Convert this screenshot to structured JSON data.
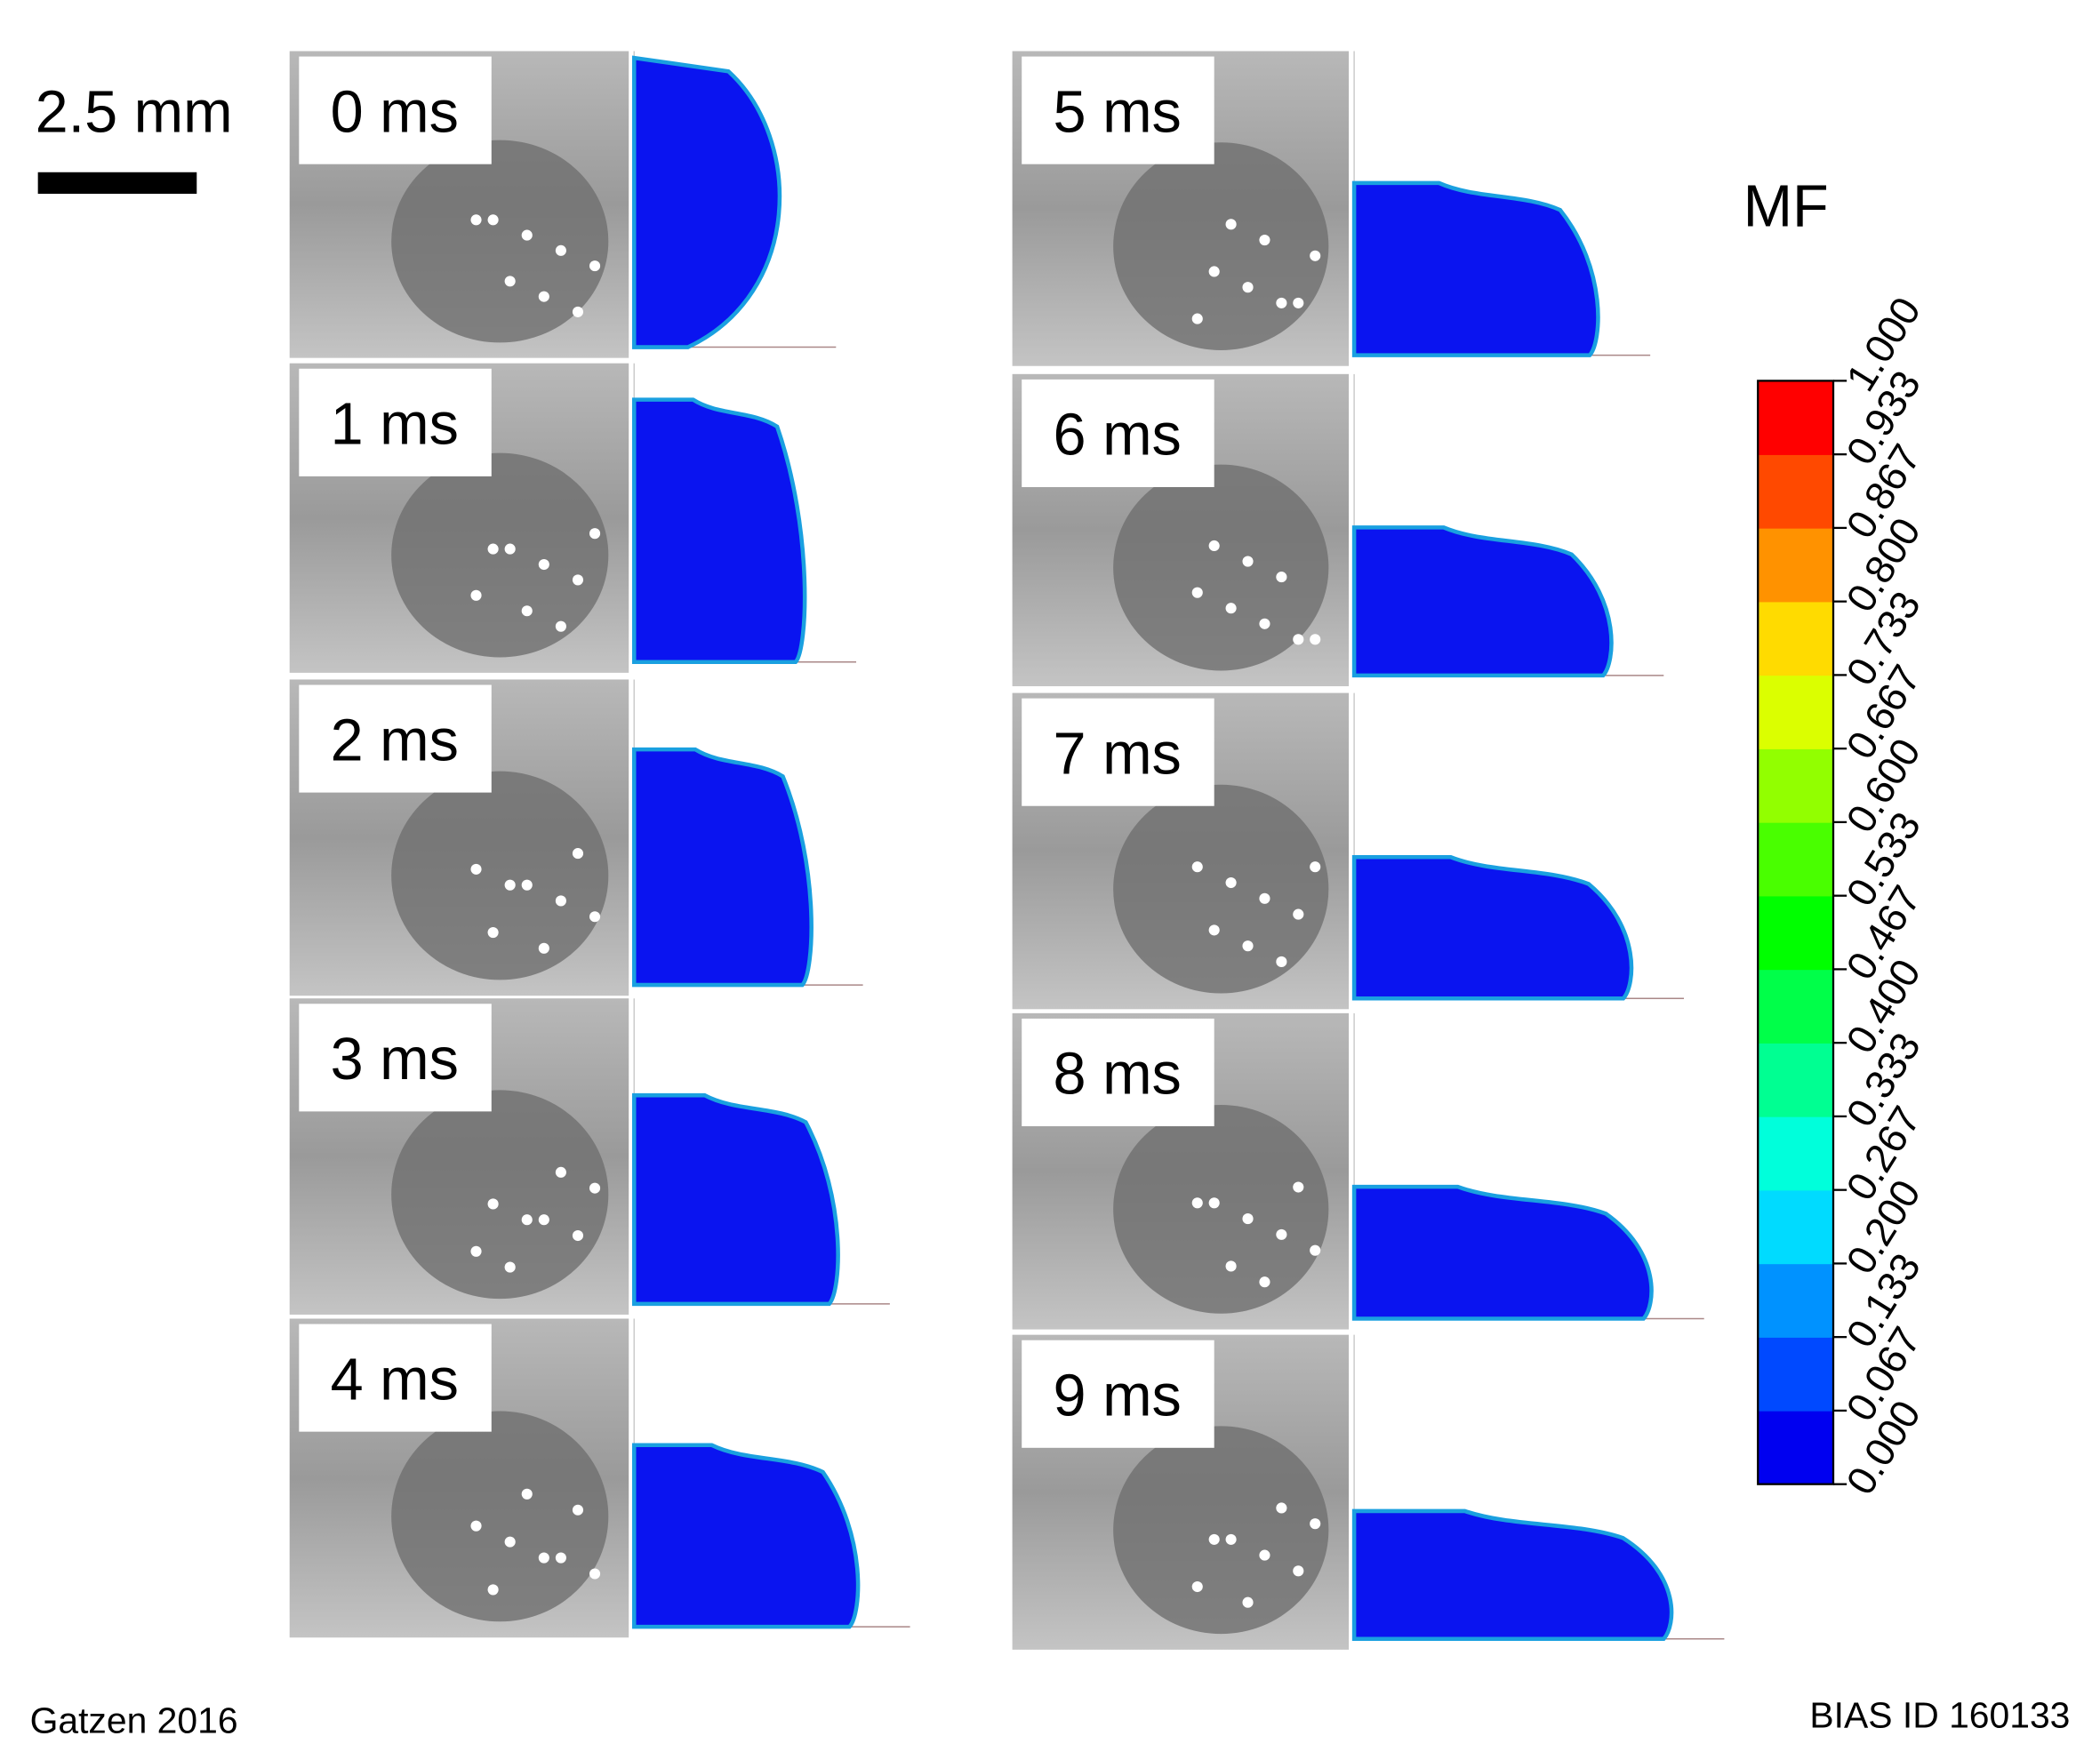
{
  "scale_bar": {
    "label": "2.5 mm"
  },
  "frames": [
    {
      "label": "0 ms"
    },
    {
      "label": "1 ms"
    },
    {
      "label": "2 ms"
    },
    {
      "label": "3 ms"
    },
    {
      "label": "4 ms"
    },
    {
      "label": "5 ms"
    },
    {
      "label": "6 ms"
    },
    {
      "label": "7 ms"
    },
    {
      "label": "8 ms"
    },
    {
      "label": "9 ms"
    }
  ],
  "colorbar": {
    "title": "MF",
    "ticks": [
      "0.000",
      "0.067",
      "0.133",
      "0.200",
      "0.267",
      "0.333",
      "0.400",
      "0.467",
      "0.533",
      "0.600",
      "0.667",
      "0.733",
      "0.800",
      "0.867",
      "0.933",
      "1.000"
    ]
  },
  "footer": {
    "left": "Gatzen 2016",
    "right": "BIAS ID 160133"
  }
}
